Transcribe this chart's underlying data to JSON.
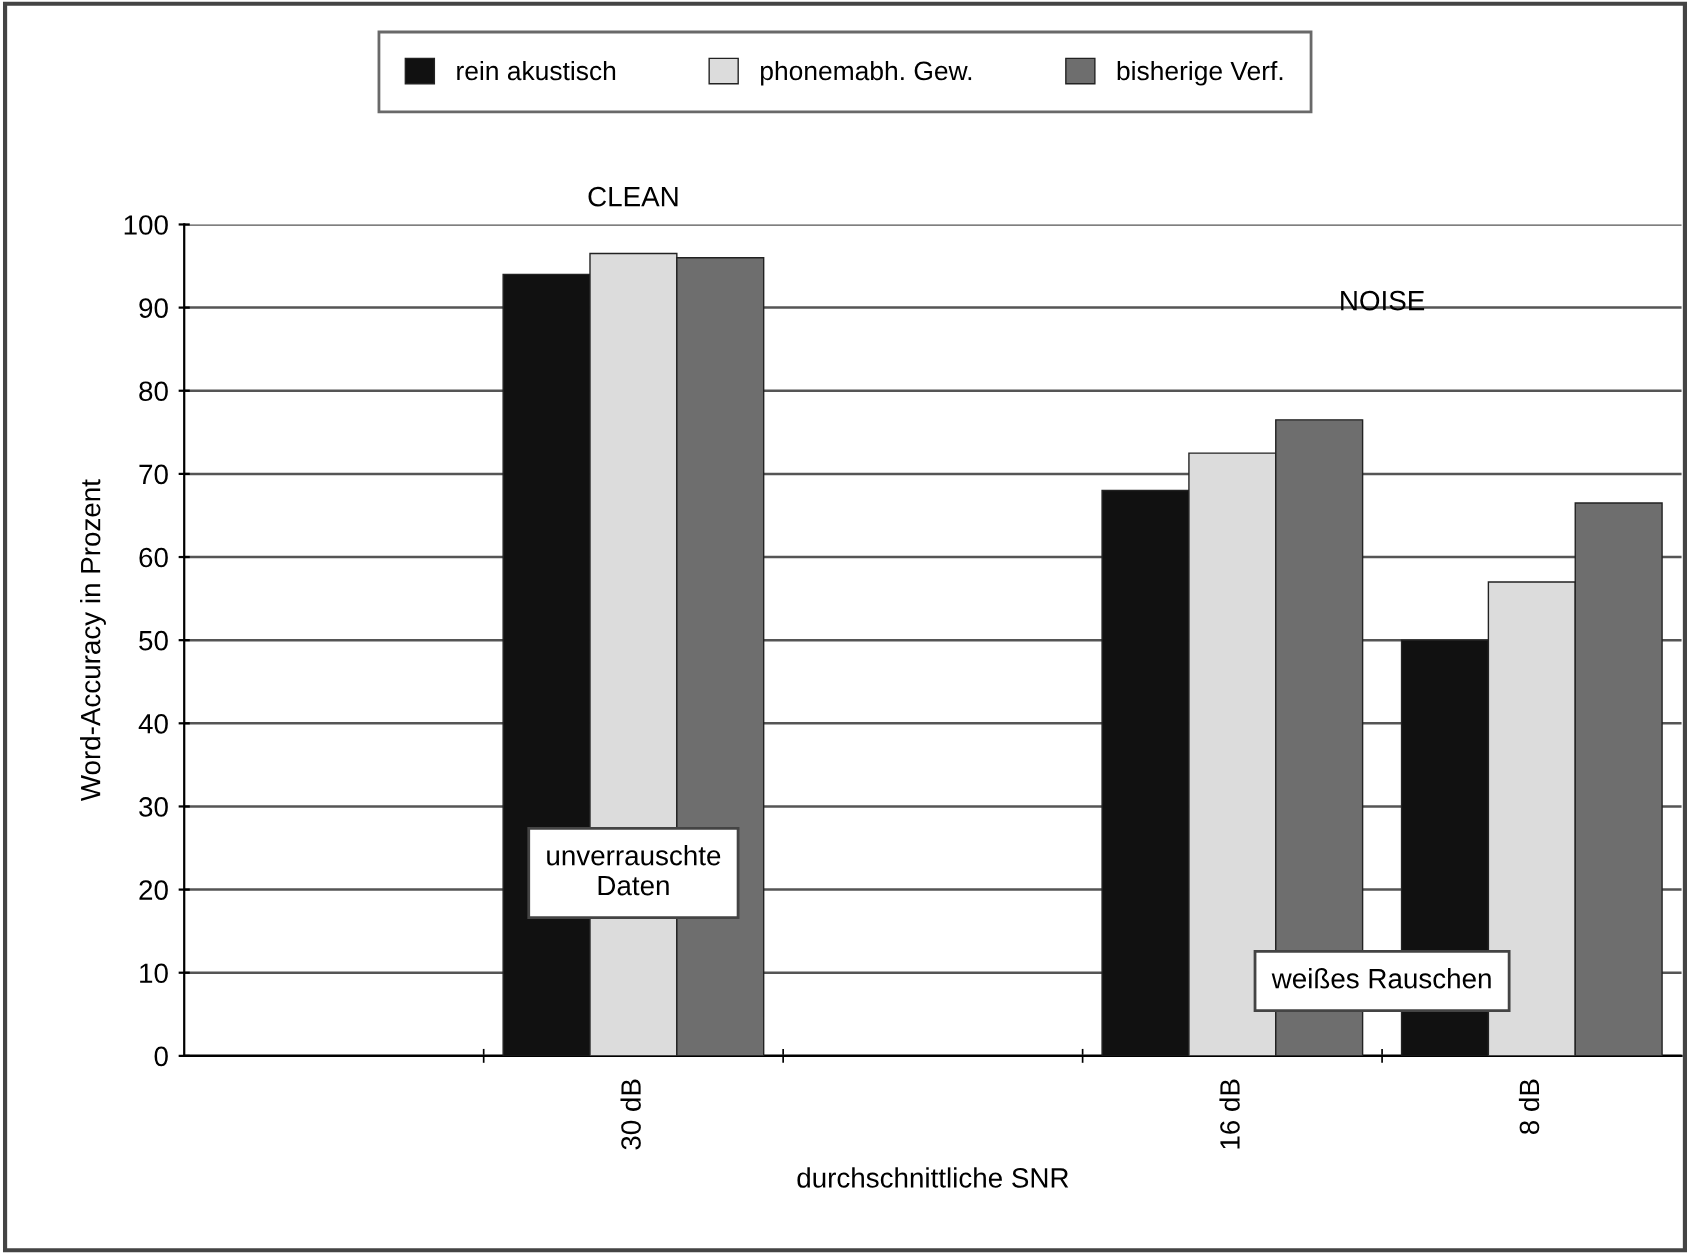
{
  "chart_data": {
    "type": "bar",
    "ylabel": "Word-Accuracy in Prozent",
    "xlabel": "durchschnittliche SNR",
    "categories": [
      null,
      "30 dB",
      null,
      "16 dB",
      "8 dB"
    ],
    "series": [
      {
        "name": "rein akustisch",
        "color": "#111111",
        "values": [
          null,
          94,
          null,
          68,
          50
        ]
      },
      {
        "name": "phonemabh. Gew.",
        "color": "#dcdcdc",
        "values": [
          null,
          96.5,
          null,
          72.5,
          57
        ]
      },
      {
        "name": "bisherige Verf.",
        "color": "#6e6e6e",
        "values": [
          null,
          96,
          null,
          76.5,
          66.5
        ]
      }
    ],
    "ylim": [
      0,
      100
    ],
    "yticks": [
      0,
      10,
      20,
      30,
      40,
      50,
      60,
      70,
      80,
      90,
      100
    ],
    "grid": "y",
    "legend": "top",
    "annotations": [
      "CLEAN",
      "NOISE",
      "unverrauschte\nDaten",
      "weißes Rauschen"
    ]
  }
}
